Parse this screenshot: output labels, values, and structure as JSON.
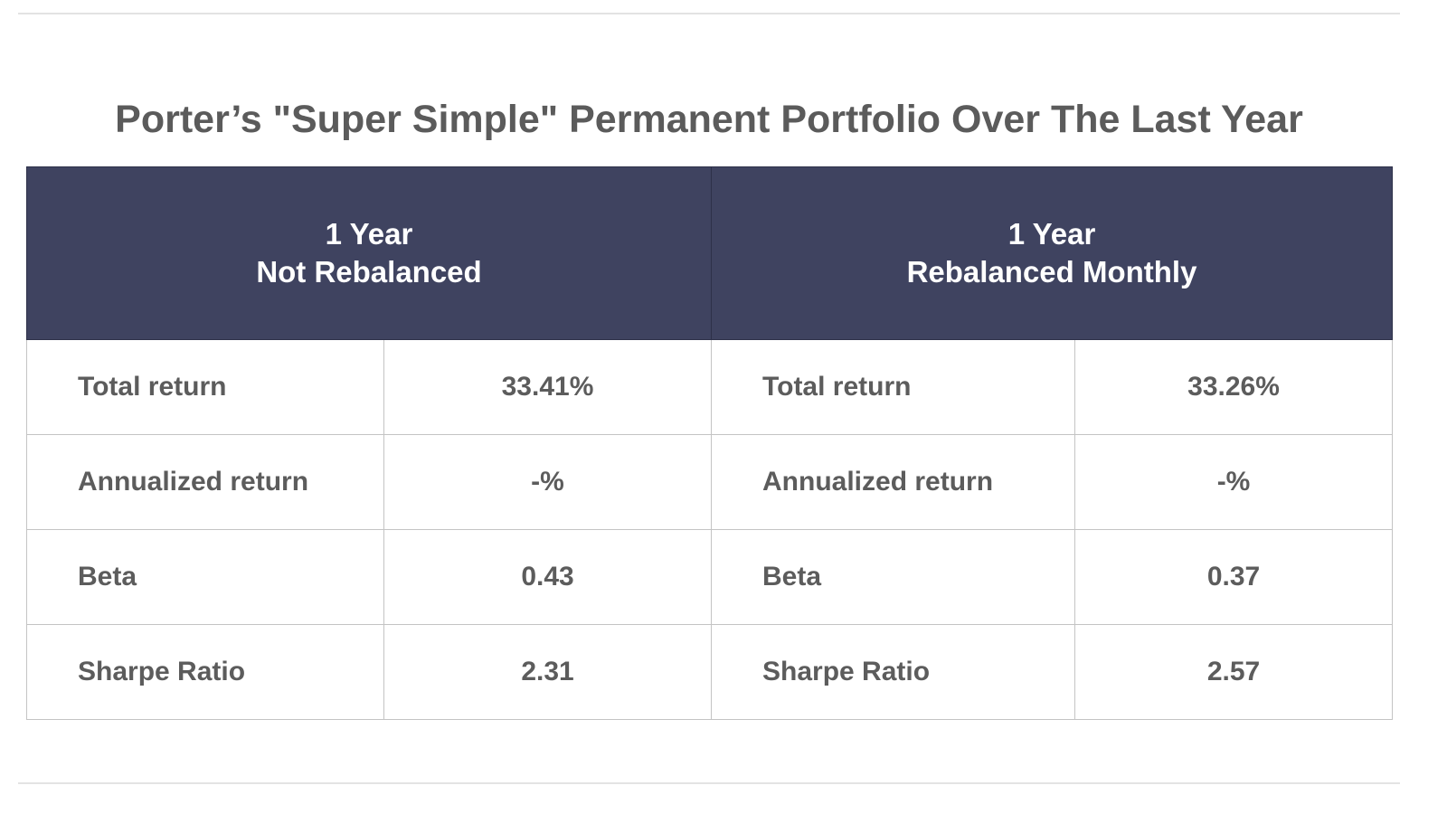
{
  "title": "Porter’s \"Super Simple\" Permanent Portfolio Over The Last Year",
  "columns": [
    {
      "line1": "1 Year",
      "line2": "Not Rebalanced"
    },
    {
      "line1": "1 Year",
      "line2": "Rebalanced Monthly"
    }
  ],
  "rows": [
    {
      "label": "Total return",
      "not_rebalanced": "33.41%",
      "rebalanced_monthly": "33.26%"
    },
    {
      "label": "Annualized return",
      "not_rebalanced": "-%",
      "rebalanced_monthly": "-%"
    },
    {
      "label": "Beta",
      "not_rebalanced": "0.43",
      "rebalanced_monthly": "0.37"
    },
    {
      "label": "Sharpe Ratio",
      "not_rebalanced": "2.31",
      "rebalanced_monthly": "2.57"
    }
  ],
  "colors": {
    "header_bg": "#3f4360",
    "header_text": "#ffffff",
    "body_text": "#5c5c5c",
    "title_text": "#5b5b5b",
    "cell_border": "#c4c4c4"
  }
}
